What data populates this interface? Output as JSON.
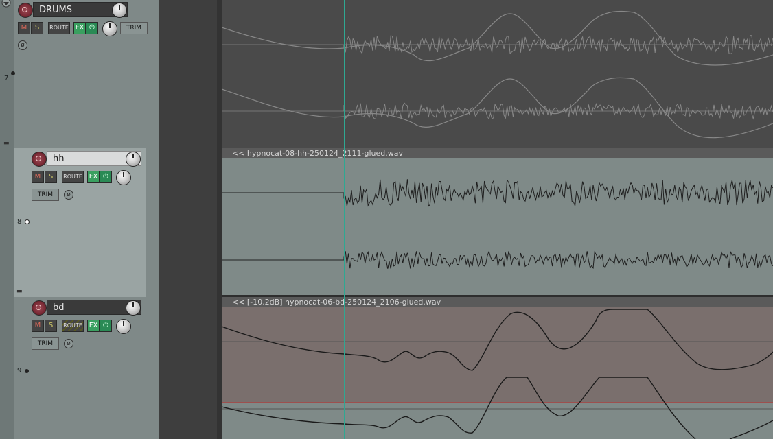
{
  "tracks": [
    {
      "number": "7",
      "name": "DRUMS",
      "mute_label": "M",
      "solo_label": "S",
      "route_label": "ROUTE",
      "fx_label": "FX",
      "power_label": "⏻",
      "trim_label": "TRIM",
      "phase_label": "ø"
    },
    {
      "number": "8",
      "name": "hh",
      "mute_label": "M",
      "solo_label": "S",
      "route_label": "ROUTE",
      "fx_label": "FX",
      "power_label": "⏻",
      "trim_label": "TRIM",
      "phase_label": "ø",
      "item_name": "<< hypnocat-08-hh-250124_2111-glued.wav"
    },
    {
      "number": "9",
      "name": "bd",
      "mute_label": "M",
      "solo_label": "S",
      "route_label": "ROUTE",
      "fx_label": "FX",
      "power_label": "⏻",
      "trim_label": "TRIM",
      "phase_label": "ø",
      "item_name": "<< [-10.2dB] hypnocat-06-bd-250124_2106-glued.wav"
    }
  ],
  "colors": {
    "tcp_bg": "#7f8988",
    "folder_item_bg": "#4a4a4a",
    "hh_item_bg": "#7f8a88",
    "bd_item_bg": "#7a6f6d",
    "cursor": "#2fa892",
    "volume_envelope": "#c03030"
  },
  "icons": {
    "record_arm": "record-arm-icon",
    "volume_knob": "knob-icon",
    "phase": "phase-invert-icon",
    "folder": "folder-icon"
  }
}
